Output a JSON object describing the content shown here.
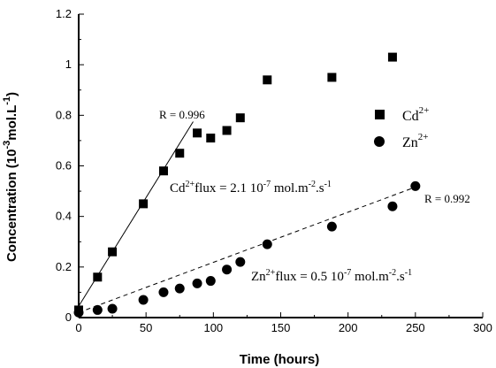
{
  "chart_data": {
    "type": "scatter",
    "title": "",
    "xlabel": "Time (hours)",
    "ylabel": {
      "prefix": "Concentration (10",
      "exp1": "-3",
      "mid": "mol.L",
      "exp2": "-1",
      "suffix": ")"
    },
    "xlim": [
      0,
      300
    ],
    "ylim": [
      0,
      1.2
    ],
    "xticks": [
      "0",
      "50",
      "100",
      "150",
      "200",
      "250",
      "300"
    ],
    "yticks": [
      "0",
      "0.2",
      "0.4",
      "0.6",
      "0.8",
      "1",
      "1.2"
    ],
    "grid": false,
    "legend_position": "right",
    "series": [
      {
        "name": "Cd",
        "name_sup": "2+",
        "marker": "square",
        "color": "#000000",
        "points": [
          [
            0,
            0.03
          ],
          [
            14,
            0.16
          ],
          [
            25,
            0.26
          ],
          [
            48,
            0.45
          ],
          [
            63,
            0.58
          ],
          [
            75,
            0.65
          ],
          [
            88,
            0.73
          ],
          [
            98,
            0.71
          ],
          [
            110,
            0.74
          ],
          [
            120,
            0.79
          ],
          [
            140,
            0.94
          ],
          [
            188,
            0.95
          ],
          [
            233,
            1.03
          ]
        ]
      },
      {
        "name": "Zn",
        "name_sup": "2+",
        "marker": "circle",
        "color": "#000000",
        "points": [
          [
            0,
            0.02
          ],
          [
            14,
            0.03
          ],
          [
            25,
            0.035
          ],
          [
            48,
            0.07
          ],
          [
            63,
            0.1
          ],
          [
            75,
            0.115
          ],
          [
            88,
            0.135
          ],
          [
            98,
            0.145
          ],
          [
            110,
            0.19
          ],
          [
            120,
            0.22
          ],
          [
            140,
            0.29
          ],
          [
            188,
            0.36
          ],
          [
            233,
            0.44
          ],
          [
            250,
            0.52
          ]
        ]
      }
    ],
    "fit_lines": [
      {
        "series": "Cd",
        "style": "solid",
        "from": [
          0,
          0.045
        ],
        "to": [
          85,
          0.775
        ]
      },
      {
        "series": "Zn",
        "style": "dashed",
        "from": [
          0,
          0.02
        ],
        "to": [
          252,
          0.52
        ]
      }
    ],
    "annotations": {
      "cd_r": "R = 0.996",
      "zn_r": "R = 0.992",
      "cd_flux": {
        "prefix": "Cd",
        "sup1": "2+",
        "mid": "flux = 2.1 10",
        "sup2": "-7",
        "mid2": " mol.m",
        "sup3": "-2",
        "mid3": ".s",
        "sup4": "-1"
      },
      "zn_flux": {
        "prefix": "Zn",
        "sup1": "2+",
        "mid": "flux = 0.5 10",
        "sup2": "-7",
        "mid2": " mol.m",
        "sup3": "-2",
        "mid3": ".s",
        "sup4": "-1"
      }
    }
  }
}
